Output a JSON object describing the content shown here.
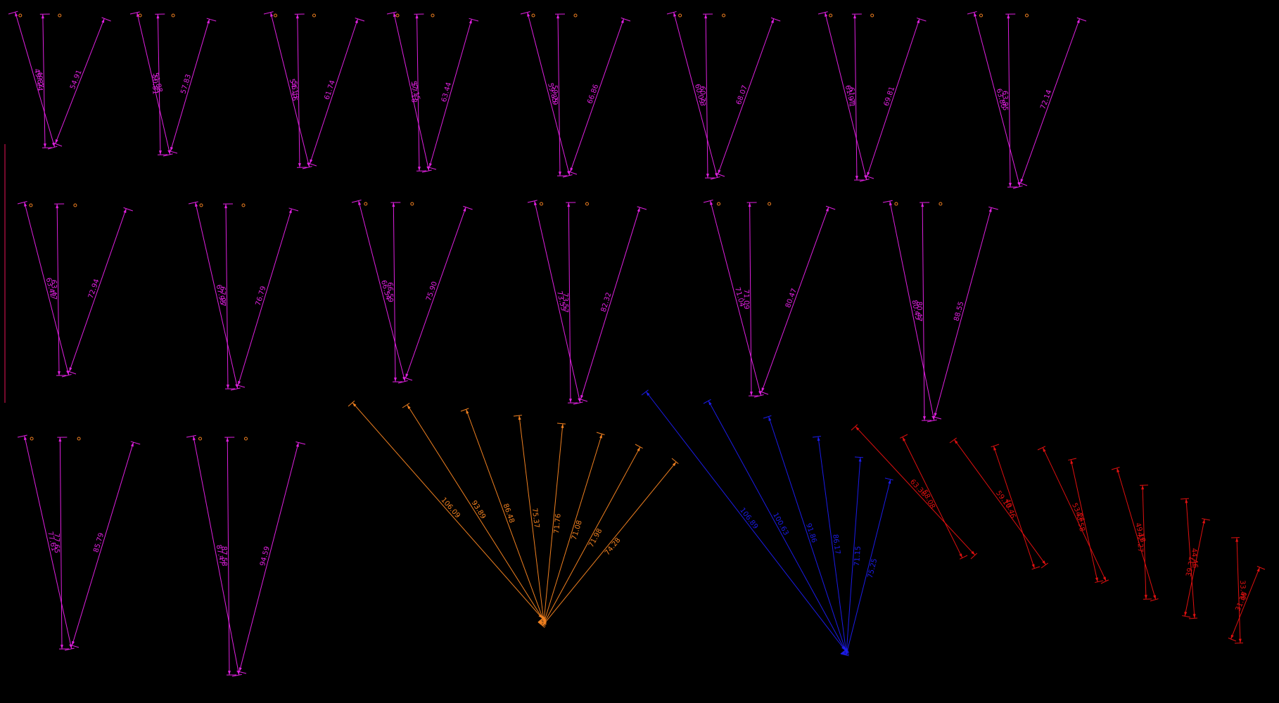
{
  "colors": {
    "background": "#000000",
    "magenta": "#e020e0",
    "orange": "#f08020",
    "blue": "#1c1ce8",
    "red": "#e01010",
    "border": "#c0104a"
  },
  "v_groups": [
    {
      "labels": [
        "49.82",
        "49.24",
        "54.91"
      ]
    },
    {
      "labels": [
        "51.88",
        "50.81",
        "57.83"
      ]
    },
    {
      "labels": [
        "54.13",
        "56.16",
        "61.74"
      ]
    },
    {
      "labels": [
        "57.15",
        "57.18",
        "63.44"
      ]
    },
    {
      "labels": [
        "59.85",
        "59.29",
        "66.86"
      ]
    },
    {
      "labels": [
        "60.09",
        "60.73",
        "68.07"
      ]
    },
    {
      "labels": [
        "61.97",
        "61.71",
        "69.81"
      ]
    },
    {
      "labels": [
        "63.80",
        "63.85",
        "72.14"
      ]
    },
    {
      "labels": [
        "63.42",
        "63.47",
        "72.94"
      ]
    },
    {
      "labels": [
        "67.93",
        "67.97",
        "76.79"
      ]
    },
    {
      "labels": [
        "66.54",
        "66.59",
        "75.90"
      ]
    },
    {
      "labels": [
        "73.53",
        "73.57",
        "82.32"
      ]
    },
    {
      "labels": [
        "71.04",
        "71.09",
        "80.47"
      ]
    },
    {
      "labels": [
        "80.43",
        "80.47",
        "88.55"
      ]
    },
    {
      "labels": [
        "77.61",
        "77.65",
        "85.79"
      ]
    },
    {
      "labels": [
        "87.47",
        "87.58",
        "94.59"
      ]
    }
  ],
  "fans": {
    "orange": [
      "106.09",
      "93.89",
      "86.48",
      "75.37",
      "71.76",
      "71.08",
      "71.98",
      "74.28"
    ],
    "blue": [
      "106.89",
      "100.63",
      "91.86",
      "86.17",
      "71.15",
      "75.25"
    ]
  },
  "red_pairs": [
    [
      "63.38",
      "58.08"
    ],
    [
      "59.10",
      "49.46"
    ],
    [
      "53.24",
      "43.58"
    ],
    [
      "49.18",
      "42.27"
    ],
    [
      "44.46",
      "39.37"
    ],
    [
      "33.46",
      "31.36"
    ]
  ]
}
